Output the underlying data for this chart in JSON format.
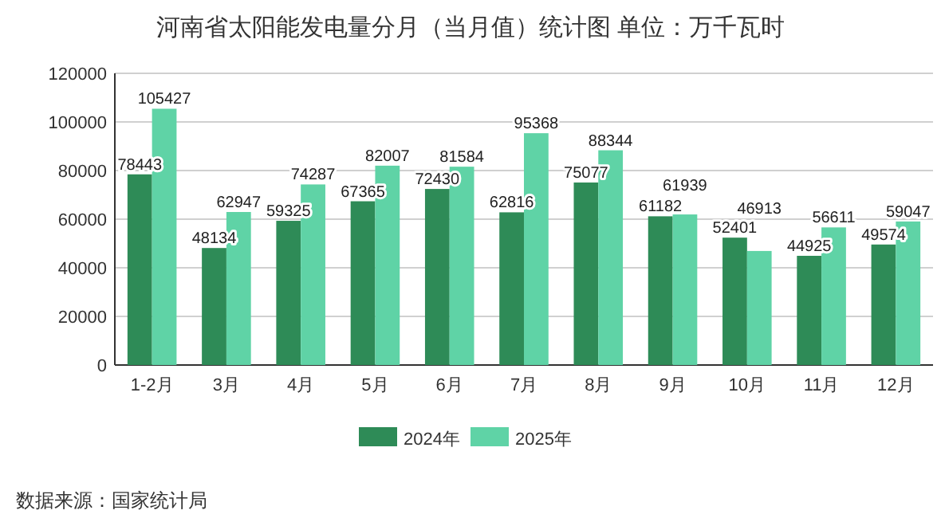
{
  "chart_data": {
    "type": "bar",
    "title": "河南省太阳能发电量分月（当月值）统计图 单位：万千瓦时",
    "categories": [
      "1-2月",
      "3月",
      "4月",
      "5月",
      "6月",
      "7月",
      "8月",
      "9月",
      "10月",
      "11月",
      "12月"
    ],
    "series": [
      {
        "name": "2024年",
        "color": "#2e8b57",
        "values": [
          78443,
          48134,
          59325,
          67365,
          72430,
          62816,
          75077,
          61182,
          52401,
          44925,
          49574
        ]
      },
      {
        "name": "2025年",
        "color": "#5fd3a6",
        "values": [
          105427,
          62947,
          74287,
          82007,
          81584,
          95368,
          88344,
          61939,
          46913,
          56611,
          59047
        ]
      }
    ],
    "ylim": [
      0,
      120000
    ],
    "yticks": [
      0,
      20000,
      40000,
      60000,
      80000,
      100000,
      120000
    ],
    "grid": "y",
    "legend": "bottom",
    "data_labels": true,
    "annotations": [
      "数据来源：国家统计局"
    ]
  }
}
